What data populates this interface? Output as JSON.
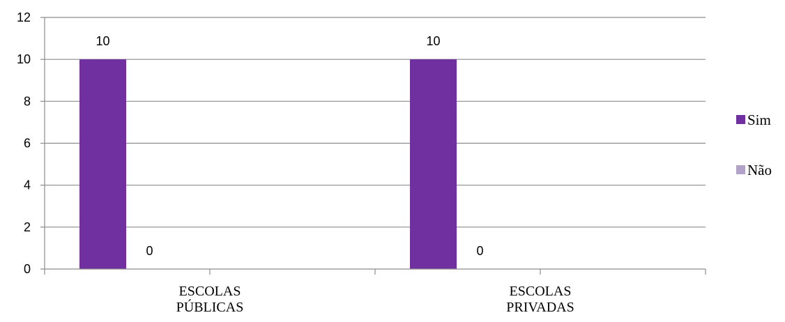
{
  "chart_data": {
    "type": "bar",
    "title": "",
    "xlabel": "",
    "ylabel": "",
    "categories": [
      [
        "ESCOLAS",
        "PÚBLICAS"
      ],
      [
        "ESCOLAS",
        "PRIVADAS"
      ]
    ],
    "series": [
      {
        "name": "Sim",
        "values": [
          10,
          10
        ],
        "color": "#7030A0"
      },
      {
        "name": "Não",
        "values": [
          0,
          0
        ],
        "color": "#B3A2C7"
      }
    ],
    "ylim": [
      0,
      12
    ],
    "yticks": [
      "0",
      "2",
      "4",
      "6",
      "8",
      "10",
      "12"
    ],
    "data_labels": true,
    "grid": true,
    "legend_position": "right"
  }
}
